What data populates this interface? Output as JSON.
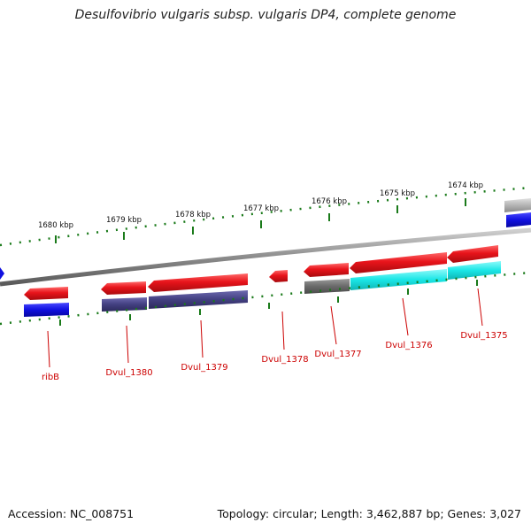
{
  "title": "Desulfovibrio vulgaris subsp. vulgaris DP4, complete genome",
  "accession": "Accession: NC_008751",
  "summary": "Topology: circular; Length: 3,462,887 bp; Genes: 3,027",
  "ticks": [
    "1680 kbp",
    "1679 kbp",
    "1678 kbp",
    "1677 kbp",
    "1676 kbp",
    "1675 kbp",
    "1674 kbp"
  ],
  "genes": [
    {
      "label": "ribB",
      "strand": "reverse",
      "category": "blue"
    },
    {
      "label": "Dvul_1380",
      "strand": "reverse",
      "category": "slate"
    },
    {
      "label": "Dvul_1379",
      "strand": "reverse",
      "category": "slate"
    },
    {
      "label": "Dvul_1378",
      "strand": "reverse",
      "category": "none"
    },
    {
      "label": "Dvul_1377",
      "strand": "reverse",
      "category": "gray"
    },
    {
      "label": "Dvul_1376",
      "strand": "reverse",
      "category": "cyan"
    },
    {
      "label": "Dvul_1375",
      "strand": "reverse",
      "category": "cyan"
    }
  ],
  "colors": {
    "gene": "#e8141b",
    "blue": "#1010e0",
    "slate": "#423f80",
    "cyan": "#1ae6e6",
    "gray": "#6a6a6a",
    "tick": "#1a7a1a",
    "label": "#cc0000",
    "backbone": "#8c8c8c"
  }
}
